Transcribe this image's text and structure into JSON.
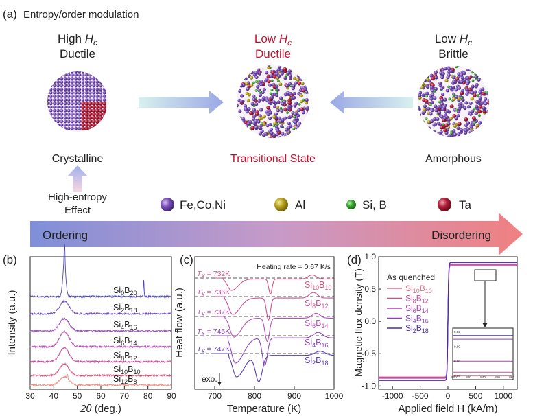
{
  "panel_a": {
    "label": "(a)",
    "title": "Entropy/order modulation",
    "states": [
      {
        "hc_prefix": "High ",
        "hc_sym": "H",
        "hc_sub": "c",
        "property": "Ductile",
        "caption": "Crystalline"
      },
      {
        "hc_prefix": "Low ",
        "hc_sym": "H",
        "hc_sub": "c",
        "property": "Ductile",
        "caption": "Transitional State"
      },
      {
        "hc_prefix": "Low ",
        "hc_sym": "H",
        "hc_sub": "c",
        "property": "Brittle",
        "caption": "Amorphous"
      }
    ],
    "effect_line1": "High-entropy",
    "effect_line2": "Effect",
    "legend": [
      {
        "label": "Fe,Co,Ni",
        "color": "#7a4fb8"
      },
      {
        "label": "Al",
        "color": "#b8a21e"
      },
      {
        "label": "Si, B",
        "color": "#3aa832"
      },
      {
        "label": "Ta",
        "color": "#b0203a"
      }
    ],
    "arrow_left": "Ordering",
    "arrow_right": "Disordering",
    "colors": {
      "red_text": "#c8102e",
      "arrow_start": "#7f8fd8",
      "arrow_end": "#f08080"
    }
  },
  "panel_b": {
    "label": "(b)",
    "ylabel": "Intensity (a.u.)",
    "xlabel_sym": "2θ",
    "xlabel_unit": " (deg.)",
    "xticks": [
      "30",
      "40",
      "50",
      "60",
      "70",
      "80",
      "90"
    ],
    "series": [
      {
        "base": "Si",
        "s1": "0",
        "mid": "B",
        "s2": "20",
        "color": "#4b45b5"
      },
      {
        "base": "Si",
        "s1": "2",
        "mid": "B",
        "s2": "18",
        "color": "#6f4bb8"
      },
      {
        "base": "Si",
        "s1": "4",
        "mid": "B",
        "s2": "16",
        "color": "#9b4fc0"
      },
      {
        "base": "Si",
        "s1": "6",
        "mid": "B",
        "s2": "14",
        "color": "#b851b8"
      },
      {
        "base": "Si",
        "s1": "8",
        "mid": "B",
        "s2": "12",
        "color": "#c84f9a"
      },
      {
        "base": "Si",
        "s1": "10",
        "mid": "B",
        "s2": "10",
        "color": "#d4567e"
      },
      {
        "base": "Si",
        "s1": "12",
        "mid": "B",
        "s2": "8",
        "color": "#ee8f80"
      }
    ]
  },
  "panel_c": {
    "label": "(c)",
    "ylabel": "Heat flow (a.u.)",
    "xlabel": "Temperature (K)",
    "xticks": [
      "700",
      "800",
      "900",
      "1000"
    ],
    "heating_rate": "Heating rate = 0.67 K/s",
    "exo": "exo.",
    "tx": [
      {
        "sym": "T",
        "sub": "X",
        "value": " = 732K"
      },
      {
        "sym": "T",
        "sub": "X",
        "value": " = 736K"
      },
      {
        "sym": "T",
        "sub": "X",
        "value": " = 737K"
      },
      {
        "sym": "T",
        "sub": "X",
        "value": " = 745K"
      },
      {
        "sym": "T",
        "sub": "X",
        "value": " = 747K"
      }
    ],
    "series": [
      {
        "base": "Si",
        "s1": "10",
        "mid": "B",
        "s2": "10",
        "color": "#d4567e"
      },
      {
        "base": "Si",
        "s1": "8",
        "mid": "B",
        "s2": "12",
        "color": "#c84f9a"
      },
      {
        "base": "Si",
        "s1": "6",
        "mid": "B",
        "s2": "14",
        "color": "#b851b8"
      },
      {
        "base": "Si",
        "s1": "4",
        "mid": "B",
        "s2": "16",
        "color": "#8f48bd"
      },
      {
        "base": "Si",
        "s1": "2",
        "mid": "B",
        "s2": "18",
        "color": "#5a3cb5"
      }
    ]
  },
  "panel_d": {
    "label": "(d)",
    "ylabel": "Magnetic flux density (T)",
    "xlabel": "Applied field H (kA/m)",
    "xticks": [
      "-1000",
      "-500",
      "0",
      "500",
      "1000"
    ],
    "yticks": [
      "-1.0",
      "-0.5",
      "0.0",
      "0.5",
      "1.0"
    ],
    "legend_title": "As quenched",
    "inset_xticks": [
      "800",
      "820",
      "840",
      "860",
      "880"
    ],
    "inset_yticks": [
      "0.92",
      "0.90",
      "0.88",
      "0.86"
    ],
    "series": [
      {
        "base": "Si",
        "s1": "10",
        "mid": "B",
        "s2": "10",
        "color": "#e0708a",
        "ms": 0.86
      },
      {
        "base": "Si",
        "s1": "8",
        "mid": "B",
        "s2": "12",
        "color": "#c84f9a",
        "ms": 0.865
      },
      {
        "base": "Si",
        "s1": "6",
        "mid": "B",
        "s2": "14",
        "color": "#b040b0",
        "ms": 0.88
      },
      {
        "base": "Si",
        "s1": "4",
        "mid": "B",
        "s2": "16",
        "color": "#8a40c0",
        "ms": 0.91
      },
      {
        "base": "Si",
        "s1": "2",
        "mid": "B",
        "s2": "18",
        "color": "#4a2aa8",
        "ms": 0.915
      }
    ]
  }
}
